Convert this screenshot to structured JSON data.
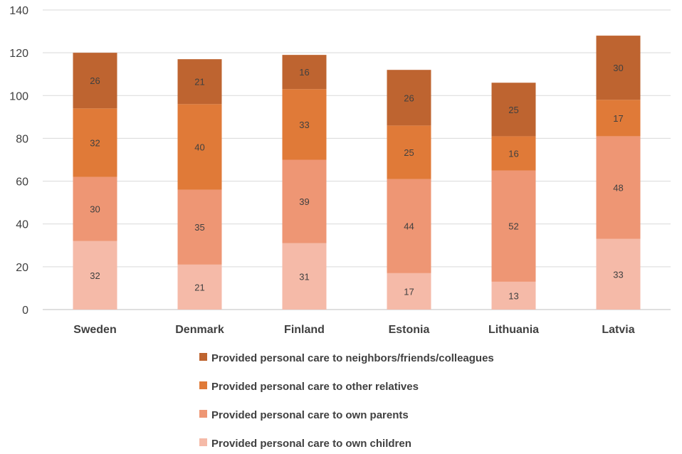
{
  "chart_data": {
    "type": "bar",
    "stacked": true,
    "categories": [
      "Sweden",
      "Denmark",
      "Finland",
      "Estonia",
      "Lithuania",
      "Latvia"
    ],
    "series": [
      {
        "name": "Provided personal care to own children",
        "color": "#F5BAA8",
        "values": [
          32,
          21,
          31,
          17,
          13,
          33
        ]
      },
      {
        "name": "Provided personal care to own parents",
        "color": "#EE9674",
        "values": [
          30,
          35,
          39,
          44,
          52,
          48
        ]
      },
      {
        "name": "Provided personal care to other relatives",
        "color": "#E07A38",
        "values": [
          32,
          40,
          33,
          25,
          16,
          17
        ]
      },
      {
        "name": "Provided personal care to neighbors/friends/colleagues",
        "color": "#BE6430",
        "values": [
          26,
          21,
          16,
          26,
          25,
          30
        ]
      }
    ],
    "y_ticks": [
      "0",
      "20",
      "40",
      "60",
      "80",
      "100",
      "120",
      "140"
    ],
    "ylim": [
      0,
      140
    ],
    "grid": true,
    "legend": "bottom",
    "legend_order": [
      3,
      2,
      1,
      0
    ]
  }
}
